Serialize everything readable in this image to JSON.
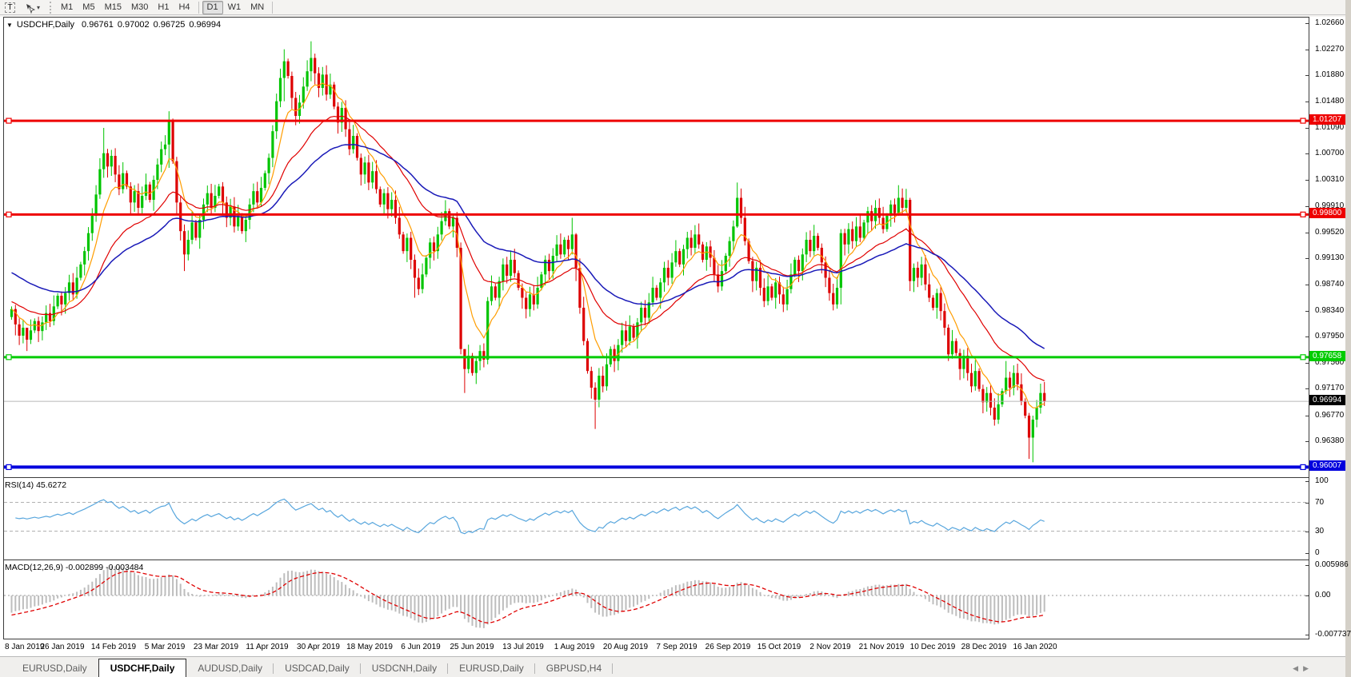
{
  "toolbar": {
    "text_tool_label": "T",
    "pointer_tool_caret": "▾",
    "timeframes": [
      "M1",
      "M5",
      "M15",
      "M30",
      "H1",
      "H4",
      "D1",
      "W1",
      "MN"
    ],
    "active_timeframe": "D1"
  },
  "header": {
    "collapse_arrow": "▼",
    "symbol_title": "USDCHF,Daily",
    "ohlc": {
      "open": "0.96761",
      "high": "0.97002",
      "low": "0.96725",
      "close": "0.96994"
    }
  },
  "price_axis": {
    "ticks": [
      {
        "v": 1.0266,
        "t": "1.02660"
      },
      {
        "v": 1.0227,
        "t": "1.02270"
      },
      {
        "v": 1.0188,
        "t": "1.01880"
      },
      {
        "v": 1.0148,
        "t": "1.01480"
      },
      {
        "v": 1.0109,
        "t": "1.01090"
      },
      {
        "v": 1.007,
        "t": "1.00700"
      },
      {
        "v": 1.0031,
        "t": "1.00310"
      },
      {
        "v": 0.9991,
        "t": "0.99910"
      },
      {
        "v": 0.9952,
        "t": "0.99520"
      },
      {
        "v": 0.9913,
        "t": "0.99130"
      },
      {
        "v": 0.9874,
        "t": "0.98740"
      },
      {
        "v": 0.9834,
        "t": "0.98340"
      },
      {
        "v": 0.9795,
        "t": "0.97950"
      },
      {
        "v": 0.9756,
        "t": "0.97560"
      },
      {
        "v": 0.9717,
        "t": "0.97170"
      },
      {
        "v": 0.9677,
        "t": "0.96770"
      },
      {
        "v": 0.9638,
        "t": "0.96380"
      }
    ],
    "current_price": {
      "v": 0.96994,
      "t": "0.96994",
      "line_color": "#b8b8b8",
      "tag_bg": "#000000"
    }
  },
  "horizontal_lines": [
    {
      "name": "resistance-upper",
      "v": 1.01207,
      "t": "1.01207",
      "color": "#ee0000",
      "width": 3
    },
    {
      "name": "resistance-lower",
      "v": 0.998,
      "t": "0.99800",
      "color": "#ee0000",
      "width": 3
    },
    {
      "name": "support-green",
      "v": 0.97658,
      "t": "0.97658",
      "color": "#00cc00",
      "width": 3
    },
    {
      "name": "support-blue",
      "v": 0.96007,
      "t": "0.96007",
      "color": "#0000dd",
      "width": 4
    }
  ],
  "indicators": {
    "rsi": {
      "label": "RSI(14) 45.6272",
      "period": 14,
      "last_value": 45.6272,
      "color": "#58a6dd",
      "range": [
        0,
        100
      ],
      "level_lines": [
        70,
        30
      ],
      "axis_ticks": [
        {
          "v": 100,
          "t": "100"
        },
        {
          "v": 70,
          "t": "70"
        },
        {
          "v": 30,
          "t": "30"
        },
        {
          "v": 0,
          "t": "0"
        }
      ]
    },
    "macd": {
      "label": "MACD(12,26,9) -0.002899 -0.003484",
      "fast": 12,
      "slow": 26,
      "signal": 9,
      "main_value": "-0.002899",
      "signal_value": "-0.003484",
      "histogram_color": "#bdbdbd",
      "signal_color": "#e00000",
      "axis_ticks": [
        {
          "v": 0.005986,
          "t": "0.005986"
        },
        {
          "v": 0,
          "t": "0.00"
        },
        {
          "v": -0.007737,
          "t": "-0.007737"
        }
      ]
    }
  },
  "date_axis": {
    "labels": [
      "8 Jan 2019",
      "26 Jan 2019",
      "14 Feb 2019",
      "5 Mar 2019",
      "23 Mar 2019",
      "11 Apr 2019",
      "30 Apr 2019",
      "18 May 2019",
      "6 Jun 2019",
      "25 Jun 2019",
      "13 Jul 2019",
      "1 Aug 2019",
      "20 Aug 2019",
      "7 Sep 2019",
      "26 Sep 2019",
      "15 Oct 2019",
      "2 Nov 2019",
      "21 Nov 2019",
      "10 Dec 2019",
      "28 Dec 2019",
      "16 Jan 2020"
    ],
    "first_x": 10,
    "spacing": 64
  },
  "tabs": {
    "items": [
      "EURUSD,Daily",
      "USDCHF,Daily",
      "AUDUSD,Daily",
      "USDCAD,Daily",
      "USDCNH,Daily",
      "EURUSD,Daily",
      "GBPUSD,H4"
    ],
    "active_index": 1,
    "scroll_left": "◀",
    "scroll_right": "▶"
  },
  "chart_data": {
    "type": "candlestick",
    "symbol": "USDCHF",
    "timeframe": "Daily",
    "title": "USDCHF,Daily 0.96761 0.97002 0.96725 0.96994",
    "ylim": [
      0.9586,
      1.0276
    ],
    "up_color": "#00c400",
    "down_color": "#dd0000",
    "closes": [
      0.9838,
      0.9815,
      0.9798,
      0.981,
      0.9792,
      0.9806,
      0.982,
      0.9805,
      0.9818,
      0.9832,
      0.982,
      0.9842,
      0.9858,
      0.9845,
      0.9862,
      0.9878,
      0.986,
      0.9885,
      0.9905,
      0.9925,
      0.9952,
      0.9978,
      1.001,
      1.0048,
      1.0072,
      1.0052,
      1.0068,
      1.004,
      1.0018,
      1.0042,
      1.0022,
      0.9998,
      1.0015,
      0.999,
      1.0008,
      1.0025,
      1.0002,
      1.0032,
      1.0055,
      1.0078,
      1.0085,
      1.012,
      1.006,
      0.9998,
      0.9955,
      0.992,
      0.9942,
      0.9968,
      0.9945,
      0.9972,
      0.9995,
      1.0012,
      0.999,
      1.0008,
      1.0022,
      0.9998,
      0.9975,
      0.9992,
      0.9962,
      0.9978,
      0.9955,
      0.9972,
      0.9995,
      1.0015,
      0.9998,
      1.002,
      1.0042,
      1.0065,
      1.0105,
      1.015,
      1.0185,
      1.021,
      1.0188,
      1.0155,
      1.0128,
      1.0148,
      1.0172,
      1.0195,
      1.0215,
      1.0192,
      1.017,
      1.019,
      1.016,
      1.0175,
      1.0142,
      1.0118,
      1.014,
      1.0108,
      1.0078,
      1.0098,
      1.0065,
      1.004,
      1.0058,
      1.0028,
      1.0045,
      1.0018,
      0.9995,
      1.0012,
      0.9988,
      1.0002,
      0.9975,
      0.995,
      0.9925,
      0.9945,
      0.9912,
      0.9885,
      0.9868,
      0.989,
      0.9915,
      0.9938,
      0.9925,
      0.995,
      0.997,
      0.9985,
      0.9962,
      0.9975,
      0.993,
      0.9778,
      0.9748,
      0.9768,
      0.9742,
      0.976,
      0.9775,
      0.9762,
      0.985,
      0.9872,
      0.9855,
      0.988,
      0.9905,
      0.9888,
      0.9912,
      0.9892,
      0.987,
      0.9855,
      0.9838,
      0.986,
      0.9845,
      0.987,
      0.989,
      0.9912,
      0.9895,
      0.9918,
      0.9935,
      0.992,
      0.9942,
      0.9928,
      0.995,
      0.99,
      0.984,
      0.979,
      0.9745,
      0.972,
      0.9702,
      0.9738,
      0.9722,
      0.9755,
      0.9778,
      0.976,
      0.9784,
      0.9806,
      0.979,
      0.9812,
      0.9795,
      0.9818,
      0.984,
      0.9825,
      0.9848,
      0.987,
      0.9855,
      0.9878,
      0.99,
      0.9885,
      0.9908,
      0.9925,
      0.9905,
      0.9928,
      0.9945,
      0.993,
      0.995,
      0.9935,
      0.9912,
      0.9932,
      0.9915,
      0.989,
      0.9872,
      0.9895,
      0.9918,
      0.994,
      0.9962,
      1.0005,
      0.9975,
      0.994,
      0.991,
      0.988,
      0.99,
      0.987,
      0.985,
      0.9872,
      0.9855,
      0.9878,
      0.986,
      0.9845,
      0.9868,
      0.989,
      0.9912,
      0.9895,
      0.992,
      0.9942,
      0.9925,
      0.9948,
      0.993,
      0.9908,
      0.9885,
      0.9862,
      0.9845,
      0.987,
      0.9952,
      0.9935,
      0.9958,
      0.994,
      0.9962,
      0.9945,
      0.9968,
      0.9985,
      0.997,
      0.999,
      0.9975,
      0.9958,
      0.9978,
      0.9995,
      0.9982,
      1.0005,
      0.999,
      1.0002,
      0.988,
      0.99,
      0.9885,
      0.9905,
      0.9875,
      0.9855,
      0.984,
      0.9862,
      0.9835,
      0.981,
      0.977,
      0.979,
      0.9772,
      0.9748,
      0.9768,
      0.9742,
      0.9722,
      0.9745,
      0.9718,
      0.9698,
      0.9712,
      0.969,
      0.9672,
      0.9695,
      0.9715,
      0.9735,
      0.972,
      0.9742,
      0.9725,
      0.97,
      0.9678,
      0.9645,
      0.9672,
      0.969,
      0.9712,
      0.9699
    ],
    "wick_overrides": {
      "4": [
        0.98,
        0.9775
      ],
      "24": [
        1.011,
        1.0035
      ],
      "41": [
        1.0135,
        1.005
      ],
      "45": [
        0.9965,
        0.9895
      ],
      "71": [
        1.0228,
        1.015
      ],
      "78": [
        1.024,
        1.018
      ],
      "105": [
        0.992,
        0.9855
      ],
      "117": [
        0.9938,
        0.977
      ],
      "118": [
        0.9775,
        0.9712
      ],
      "124": [
        0.9856,
        0.9755
      ],
      "146": [
        0.9975,
        0.992
      ],
      "147": [
        0.9952,
        0.988
      ],
      "152": [
        0.9728,
        0.9658
      ],
      "189": [
        1.0028,
        0.996
      ],
      "216": [
        0.9958,
        0.9845
      ],
      "231": [
        1.0024,
        0.9978
      ],
      "234": [
        1.0005,
        0.9865
      ],
      "244": [
        0.9815,
        0.976
      ],
      "259": [
        0.976,
        0.971
      ],
      "265": [
        0.9682,
        0.9613
      ],
      "266": [
        0.9678,
        0.9608
      ]
    },
    "moving_averages": [
      {
        "name": "ma-fast",
        "period": 8,
        "color": "#ff9d00",
        "width": 1.2,
        "seed": 0.9838
      },
      {
        "name": "ma-medium",
        "period": 25,
        "color": "#e00000",
        "width": 1.2,
        "seed": 0.985
      },
      {
        "name": "ma-slow",
        "period": 48,
        "color": "#1a1ab8",
        "width": 1.5,
        "seed": 0.9895
      }
    ]
  }
}
